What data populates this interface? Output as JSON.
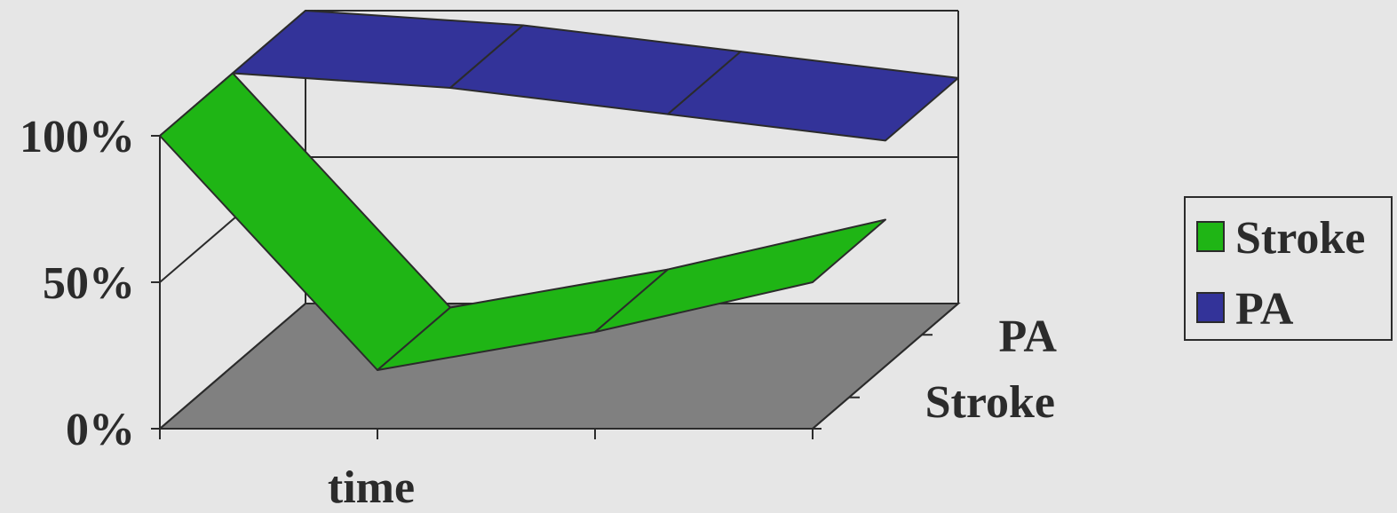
{
  "chart_data": {
    "type": "line",
    "view": "3d-ribbon",
    "x_tick_count": 4,
    "xlabel": "time",
    "ylabel": "",
    "ylim": [
      0,
      100
    ],
    "yticks": [
      "0%",
      "50%",
      "100%"
    ],
    "depth_labels": [
      "Stroke",
      "PA"
    ],
    "series": [
      {
        "name": "Stroke",
        "values": [
          100,
          20,
          33,
          50
        ],
        "color": "#1fb515"
      },
      {
        "name": "PA",
        "values": [
          100,
          95,
          86,
          77
        ],
        "color": "#333399"
      }
    ],
    "legend_position": "right",
    "grid": true
  },
  "legend": {
    "items": [
      {
        "label": "Stroke",
        "color": "#1fb515"
      },
      {
        "label": "PA",
        "color": "#333399"
      }
    ]
  },
  "colors": {
    "background": "#e6e6e6",
    "floor": "#808080",
    "axis": "#2b2b2b"
  }
}
